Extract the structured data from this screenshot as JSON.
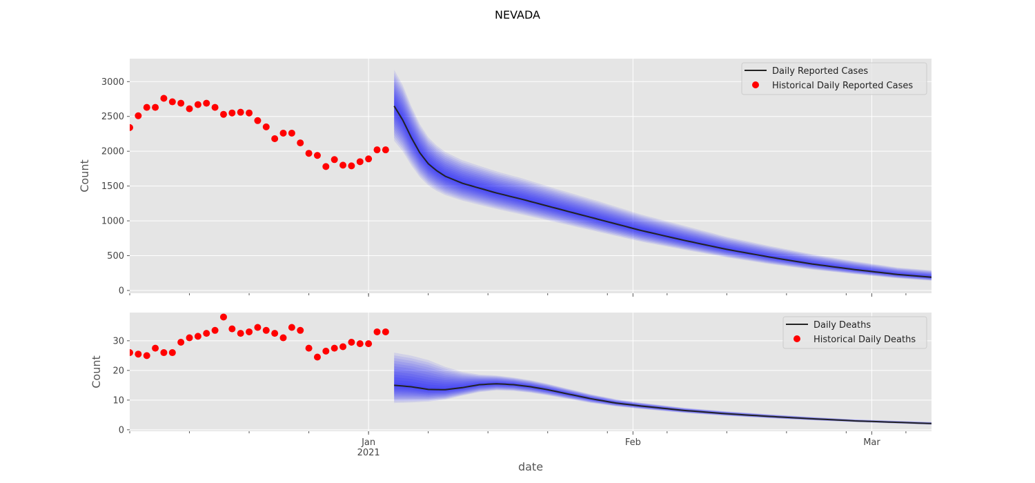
{
  "figure": {
    "title": "NEVADA"
  },
  "colors": {
    "history": "#ff0000",
    "forecast_line": "#222222",
    "band": "#0000ff",
    "panel_bg": "#e5e5e5",
    "grid": "#ffffff"
  },
  "chart_data": [
    {
      "type": "line",
      "ylabel": "Count",
      "xlabel": "",
      "ylim": [
        -40,
        3330
      ],
      "yticks": [
        0,
        500,
        1000,
        1500,
        2000,
        2500,
        3000
      ],
      "xlim": [
        "2020-12-04",
        "2021-03-08"
      ],
      "xticks": [
        {
          "date": "2021-01-01",
          "label": "Jan",
          "sublabel": "2021"
        },
        {
          "date": "2021-02-01",
          "label": "Feb",
          "sublabel": ""
        },
        {
          "date": "2021-03-01",
          "label": "Mar",
          "sublabel": ""
        }
      ],
      "legend": {
        "position": "top-right",
        "entries": [
          "Daily Reported Cases",
          "Historical Daily Reported Cases"
        ]
      },
      "historical": {
        "name": "Historical Daily Reported Cases",
        "x": [
          "2020-12-04",
          "2020-12-05",
          "2020-12-06",
          "2020-12-07",
          "2020-12-08",
          "2020-12-09",
          "2020-12-10",
          "2020-12-11",
          "2020-12-12",
          "2020-12-13",
          "2020-12-14",
          "2020-12-15",
          "2020-12-16",
          "2020-12-17",
          "2020-12-18",
          "2020-12-19",
          "2020-12-20",
          "2020-12-21",
          "2020-12-22",
          "2020-12-23",
          "2020-12-24",
          "2020-12-25",
          "2020-12-26",
          "2020-12-27",
          "2020-12-28",
          "2020-12-29",
          "2020-12-30",
          "2020-12-31",
          "2021-01-01",
          "2021-01-02",
          "2021-01-03"
        ],
        "y": [
          2340,
          2510,
          2630,
          2630,
          2760,
          2710,
          2690,
          2610,
          2670,
          2690,
          2630,
          2530,
          2550,
          2560,
          2550,
          2440,
          2350,
          2180,
          2260,
          2260,
          2120,
          1970,
          1940,
          1780,
          1880,
          1800,
          1790,
          1850,
          1890,
          2020,
          2020
        ]
      },
      "forecast": {
        "name": "Daily Reported Cases",
        "x": [
          "2021-01-04",
          "2021-01-05",
          "2021-01-06",
          "2021-01-07",
          "2021-01-08",
          "2021-01-09",
          "2021-01-10",
          "2021-01-12",
          "2021-01-14",
          "2021-01-16",
          "2021-01-19",
          "2021-01-23",
          "2021-01-28",
          "2021-02-02",
          "2021-02-07",
          "2021-02-12",
          "2021-02-17",
          "2021-02-22",
          "2021-02-27",
          "2021-03-04",
          "2021-03-08"
        ],
        "y": [
          2650,
          2450,
          2200,
          1980,
          1820,
          1720,
          1640,
          1540,
          1470,
          1400,
          1310,
          1180,
          1020,
          860,
          720,
          590,
          480,
          380,
          300,
          230,
          190
        ],
        "band_lower": [
          2150,
          2000,
          1800,
          1630,
          1510,
          1430,
          1370,
          1290,
          1230,
          1170,
          1090,
          980,
          840,
          700,
          585,
          475,
          380,
          300,
          235,
          175,
          140
        ],
        "band_upper": [
          3170,
          2950,
          2650,
          2390,
          2200,
          2080,
          1990,
          1870,
          1790,
          1710,
          1610,
          1460,
          1280,
          1090,
          930,
          770,
          640,
          520,
          420,
          330,
          290
        ]
      }
    },
    {
      "type": "line",
      "ylabel": "Count",
      "xlabel": "date",
      "ylim": [
        -0.5,
        39.5
      ],
      "yticks": [
        0,
        10,
        20,
        30
      ],
      "xlim": [
        "2020-12-04",
        "2021-03-08"
      ],
      "xticks": [
        {
          "date": "2021-01-01",
          "label": "Jan",
          "sublabel": "2021"
        },
        {
          "date": "2021-02-01",
          "label": "Feb",
          "sublabel": ""
        },
        {
          "date": "2021-03-01",
          "label": "Mar",
          "sublabel": ""
        }
      ],
      "legend": {
        "position": "top-right",
        "entries": [
          "Daily Deaths",
          "Historical Daily Deaths"
        ]
      },
      "historical": {
        "name": "Historical Daily Deaths",
        "x": [
          "2020-12-04",
          "2020-12-05",
          "2020-12-06",
          "2020-12-07",
          "2020-12-08",
          "2020-12-09",
          "2020-12-10",
          "2020-12-11",
          "2020-12-12",
          "2020-12-13",
          "2020-12-14",
          "2020-12-15",
          "2020-12-16",
          "2020-12-17",
          "2020-12-18",
          "2020-12-19",
          "2020-12-20",
          "2020-12-21",
          "2020-12-22",
          "2020-12-23",
          "2020-12-24",
          "2020-12-25",
          "2020-12-26",
          "2020-12-27",
          "2020-12-28",
          "2020-12-29",
          "2020-12-30",
          "2020-12-31",
          "2021-01-01",
          "2021-01-02",
          "2021-01-03"
        ],
        "y": [
          26,
          25.5,
          25,
          27.5,
          26,
          26,
          29.5,
          31,
          31.5,
          32.5,
          33.5,
          38,
          34,
          32.5,
          33,
          34.5,
          33.5,
          32.5,
          31,
          34.5,
          33.5,
          27.5,
          24.5,
          26.5,
          27.5,
          28,
          29.5,
          29,
          29,
          33,
          33
        ]
      },
      "forecast": {
        "name": "Daily Deaths",
        "x": [
          "2021-01-04",
          "2021-01-06",
          "2021-01-08",
          "2021-01-10",
          "2021-01-12",
          "2021-01-14",
          "2021-01-16",
          "2021-01-18",
          "2021-01-20",
          "2021-01-22",
          "2021-01-24",
          "2021-01-27",
          "2021-01-30",
          "2021-02-02",
          "2021-02-07",
          "2021-02-12",
          "2021-02-17",
          "2021-02-22",
          "2021-02-27",
          "2021-03-04",
          "2021-03-08"
        ],
        "y": [
          15,
          14.5,
          13.6,
          13.5,
          14.2,
          15.2,
          15.5,
          15.2,
          14.5,
          13.5,
          12.3,
          10.5,
          9,
          8,
          6.5,
          5.4,
          4.5,
          3.7,
          3,
          2.5,
          2.1
        ],
        "band_lower": [
          9,
          9.2,
          9.5,
          10.2,
          11.5,
          12.7,
          13.3,
          13.1,
          12.5,
          11.6,
          10.6,
          9.1,
          7.9,
          7,
          5.7,
          4.7,
          3.9,
          3.2,
          2.6,
          2.1,
          1.7
        ],
        "band_upper": [
          26,
          25,
          23.5,
          21.2,
          19.5,
          18.6,
          18.3,
          17.6,
          16.7,
          15.5,
          14.1,
          12,
          10.3,
          9.1,
          7.4,
          6.2,
          5.2,
          4.3,
          3.5,
          3,
          2.6
        ]
      }
    }
  ]
}
